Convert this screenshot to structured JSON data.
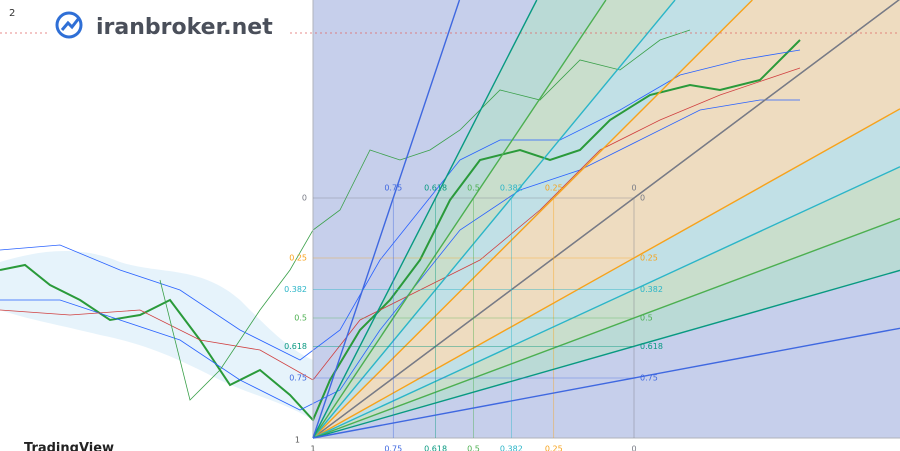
{
  "logo": "iranbroker.net",
  "watermark": "TradingView",
  "badge": "2",
  "fan": {
    "origin_label": 1,
    "levels": [
      {
        "value": 0,
        "color": "#787b86"
      },
      {
        "value": 0.25,
        "color": "#f7a21b"
      },
      {
        "value": 0.382,
        "color": "#2bb5c8"
      },
      {
        "value": 0.5,
        "color": "#4caf50"
      },
      {
        "value": 0.618,
        "color": "#089981"
      },
      {
        "value": 0.75,
        "color": "#3f68e0"
      }
    ]
  }
}
